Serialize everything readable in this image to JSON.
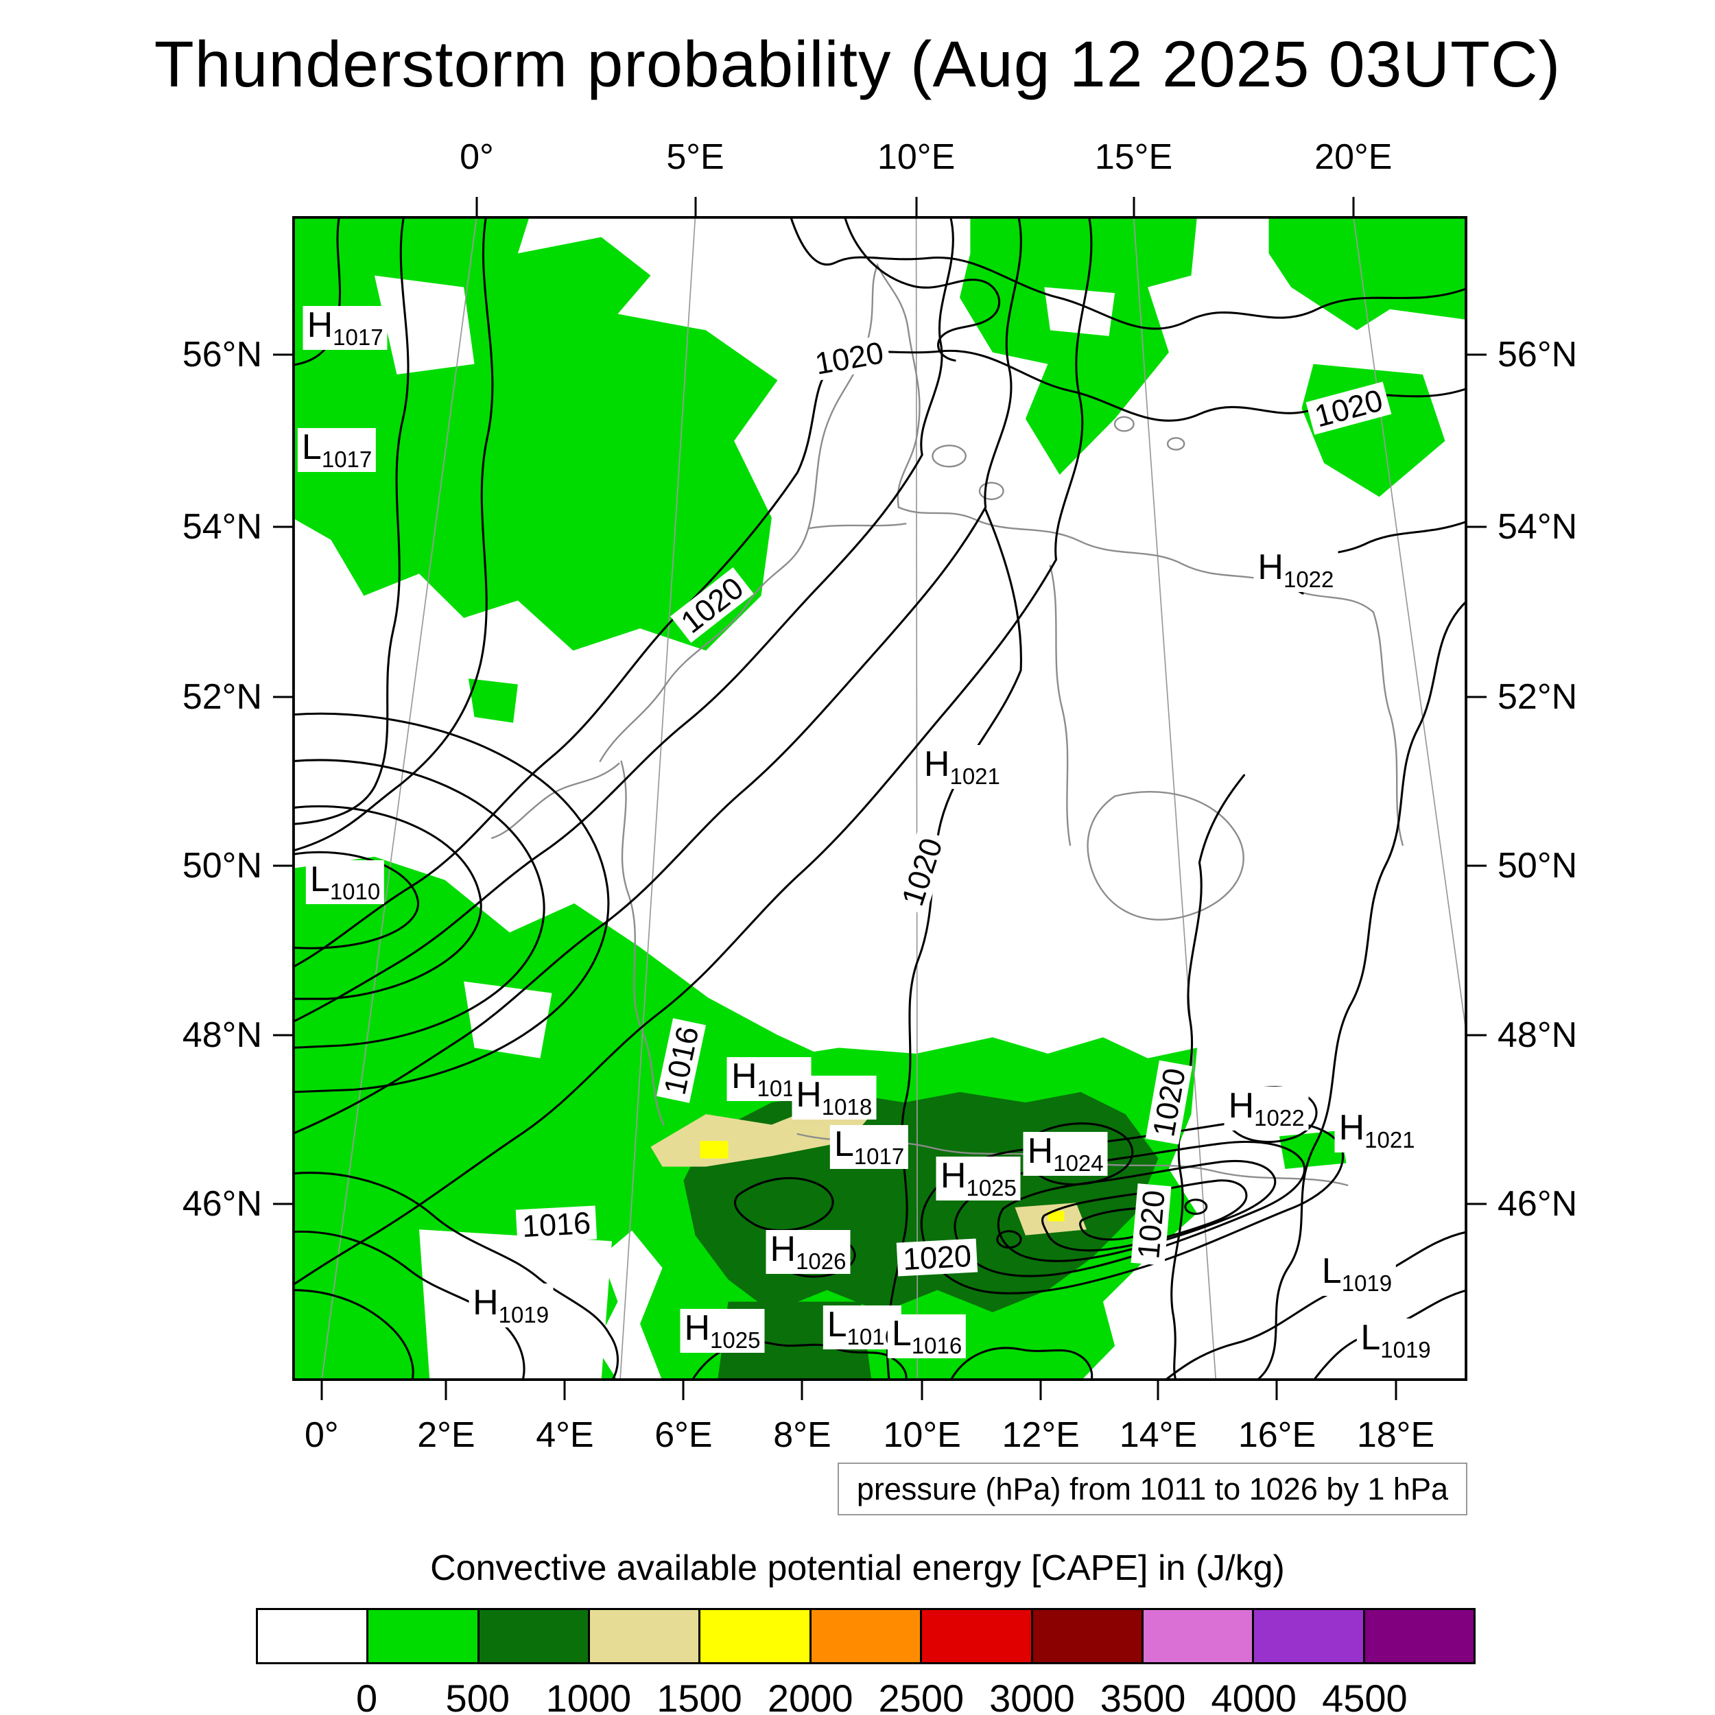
{
  "title": "Thunderstorm probability (Aug 12 2025 03UTC)",
  "pressure_note": "pressure (hPa) from 1011 to 1026 by 1 hPa",
  "cape_legend": {
    "title": "Convective available potential energy [CAPE] in (J/kg)",
    "tick_values": [
      "0",
      "500",
      "1000",
      "1500",
      "2000",
      "2500",
      "3000",
      "3500",
      "4000",
      "4500"
    ],
    "colors": [
      "#ffffff",
      "#00dc00",
      "#0a700a",
      "#e6dc96",
      "#ffff00",
      "#ff8c00",
      "#e00000",
      "#8b0000",
      "#da70d6",
      "#9932cc",
      "#800080"
    ]
  },
  "axes": {
    "top": [
      {
        "label": "0°",
        "pct": 15.7
      },
      {
        "label": "5°E",
        "pct": 34.3
      },
      {
        "label": "10°E",
        "pct": 53.1
      },
      {
        "label": "15°E",
        "pct": 71.6
      },
      {
        "label": "20°E",
        "pct": 90.3
      }
    ],
    "bottom": [
      {
        "label": "0°",
        "pct": 2.5
      },
      {
        "label": "2°E",
        "pct": 13.1
      },
      {
        "label": "4°E",
        "pct": 23.2
      },
      {
        "label": "6°E",
        "pct": 33.3
      },
      {
        "label": "8°E",
        "pct": 43.4
      },
      {
        "label": "10°E",
        "pct": 53.6
      },
      {
        "label": "12°E",
        "pct": 63.7
      },
      {
        "label": "14°E",
        "pct": 73.7
      },
      {
        "label": "16°E",
        "pct": 83.8
      },
      {
        "label": "18°E",
        "pct": 93.9
      }
    ],
    "left": [
      {
        "label": "56°N",
        "pct": 11.9
      },
      {
        "label": "54°N",
        "pct": 26.7
      },
      {
        "label": "52°N",
        "pct": 41.3
      },
      {
        "label": "50°N",
        "pct": 55.8
      },
      {
        "label": "48°N",
        "pct": 70.3
      },
      {
        "label": "46°N",
        "pct": 84.8
      }
    ],
    "right": [
      {
        "label": "56°N",
        "pct": 11.9
      },
      {
        "label": "54°N",
        "pct": 26.7
      },
      {
        "label": "52°N",
        "pct": 41.3
      },
      {
        "label": "50°N",
        "pct": 55.8
      },
      {
        "label": "48°N",
        "pct": 70.3
      },
      {
        "label": "46°N",
        "pct": 84.8
      }
    ]
  },
  "chart_data": {
    "type": "heatmap",
    "title": "Thunderstorm probability (Aug 12 2025 03UTC)",
    "fill_variable": "Convective available potential energy [CAPE] in (J/kg)",
    "fill_levels_j_per_kg": [
      0,
      500,
      1000,
      1500,
      2000,
      2500,
      3000,
      3500,
      4000,
      4500
    ],
    "fill_colors": [
      "#ffffff",
      "#00dc00",
      "#0a700a",
      "#e6dc96",
      "#ffff00",
      "#ff8c00",
      "#e00000",
      "#8b0000",
      "#da70d6",
      "#9932cc",
      "#800080"
    ],
    "contour_variable": "pressure (hPa)",
    "contour_range_hpa": [
      1011,
      1026
    ],
    "contour_interval_hpa": 1,
    "lon_ticks_top": [
      "0°",
      "5°E",
      "10°E",
      "15°E",
      "20°E"
    ],
    "lon_ticks_bottom": [
      "0°",
      "2°E",
      "4°E",
      "6°E",
      "8°E",
      "10°E",
      "12°E",
      "14°E",
      "16°E",
      "18°E"
    ],
    "lat_ticks": [
      "56°N",
      "54°N",
      "52°N",
      "50°N",
      "48°N",
      "46°N"
    ],
    "pressure_centers": [
      {
        "letter": "H",
        "value": "1017",
        "x": 4.5,
        "y": 9.6
      },
      {
        "letter": "L",
        "value": "1017",
        "x": 3.8,
        "y": 20.1
      },
      {
        "letter": "H",
        "value": "1022",
        "x": 85.4,
        "y": 30.4
      },
      {
        "letter": "H",
        "value": "1021",
        "x": 57.0,
        "y": 47.3
      },
      {
        "letter": "L",
        "value": "1010",
        "x": 4.5,
        "y": 57.2
      },
      {
        "letter": "H",
        "value": "1018",
        "x": 40.6,
        "y": 74.1
      },
      {
        "letter": "H",
        "value": "1018",
        "x": 46.1,
        "y": 75.7
      },
      {
        "letter": "L",
        "value": "1017",
        "x": 49.1,
        "y": 79.9
      },
      {
        "letter": "H",
        "value": "1025",
        "x": 58.4,
        "y": 82.6
      },
      {
        "letter": "H",
        "value": "1024",
        "x": 65.8,
        "y": 80.5
      },
      {
        "letter": "H",
        "value": "1022",
        "x": 82.9,
        "y": 76.6
      },
      {
        "letter": "H",
        "value": "1021",
        "x": 92.3,
        "y": 78.5
      },
      {
        "letter": "H",
        "value": "1026",
        "x": 43.9,
        "y": 88.9
      },
      {
        "letter": "L",
        "value": "1019",
        "x": 90.6,
        "y": 90.8
      },
      {
        "letter": "H",
        "value": "1019",
        "x": 18.6,
        "y": 93.5
      },
      {
        "letter": "H",
        "value": "1025",
        "x": 36.6,
        "y": 95.7
      },
      {
        "letter": "L",
        "value": "1016",
        "x": 48.5,
        "y": 95.4
      },
      {
        "letter": "L",
        "value": "1016",
        "x": 54.0,
        "y": 96.2
      },
      {
        "letter": "L",
        "value": "1019",
        "x": 93.9,
        "y": 96.5
      }
    ],
    "contour_labels": [
      {
        "text": "1020",
        "x": 47.4,
        "y": 12.2,
        "rot": -10
      },
      {
        "text": "1020",
        "x": 89.9,
        "y": 16.5,
        "rot": -15
      },
      {
        "text": "1020",
        "x": 35.7,
        "y": 33.4,
        "rot": -38
      },
      {
        "text": "1020",
        "x": 53.6,
        "y": 56.3,
        "rot": -72
      },
      {
        "text": "1016",
        "x": 33.1,
        "y": 72.5,
        "rot": -78
      },
      {
        "text": "1020",
        "x": 74.6,
        "y": 76.1,
        "rot": -80
      },
      {
        "text": "1016",
        "x": 22.5,
        "y": 86.6,
        "rot": -3
      },
      {
        "text": "1020",
        "x": 73.1,
        "y": 86.6,
        "rot": -85
      },
      {
        "text": "1020",
        "x": 54.9,
        "y": 89.4,
        "rot": -3
      }
    ]
  }
}
